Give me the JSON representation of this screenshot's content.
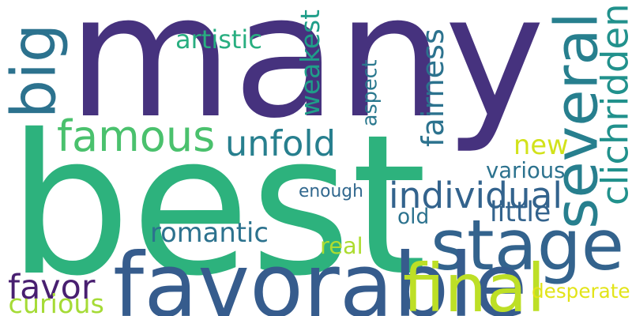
{
  "words": [
    {
      "text": "many",
      "color": "#46327e",
      "orientation": "horizontal"
    },
    {
      "text": "best",
      "color": "#2db27d",
      "orientation": "horizontal"
    },
    {
      "text": "stage",
      "color": "#33638d",
      "orientation": "horizontal"
    },
    {
      "text": "several",
      "color": "#277f8e",
      "orientation": "vertical"
    },
    {
      "text": "favorable",
      "color": "#365c8d",
      "orientation": "horizontal"
    },
    {
      "text": "famous",
      "color": "#4ac16d",
      "orientation": "horizontal"
    },
    {
      "text": "big",
      "color": "#2c728e",
      "orientation": "vertical"
    },
    {
      "text": "final",
      "color": "#bddf26",
      "orientation": "horizontal"
    },
    {
      "text": "individual",
      "color": "#33638d",
      "orientation": "horizontal"
    },
    {
      "text": "unfold",
      "color": "#277f8e",
      "orientation": "horizontal"
    },
    {
      "text": "clichridden",
      "color": "#21918c",
      "orientation": "vertical"
    },
    {
      "text": "weakest",
      "color": "#1f9e89",
      "orientation": "vertical"
    },
    {
      "text": "fairness",
      "color": "#2c728e",
      "orientation": "vertical"
    },
    {
      "text": "romantic",
      "color": "#2c728e",
      "orientation": "horizontal"
    },
    {
      "text": "favor",
      "color": "#481f70",
      "orientation": "horizontal"
    },
    {
      "text": "new",
      "color": "#d2e21b",
      "orientation": "horizontal"
    },
    {
      "text": "artistic",
      "color": "#28ae80",
      "orientation": "horizontal"
    },
    {
      "text": "various",
      "color": "#2c728e",
      "orientation": "horizontal"
    },
    {
      "text": "enough",
      "color": "#31688e",
      "orientation": "horizontal"
    },
    {
      "text": "aspect",
      "color": "#2a788e",
      "orientation": "vertical"
    },
    {
      "text": "old",
      "color": "#2c728e",
      "orientation": "horizontal"
    },
    {
      "text": "little",
      "color": "#33638d",
      "orientation": "horizontal"
    },
    {
      "text": "real",
      "color": "#addc30",
      "orientation": "horizontal"
    },
    {
      "text": "curious",
      "color": "#a5db36",
      "orientation": "horizontal"
    },
    {
      "text": "desperate",
      "color": "#e2e418",
      "orientation": "horizontal"
    }
  ]
}
